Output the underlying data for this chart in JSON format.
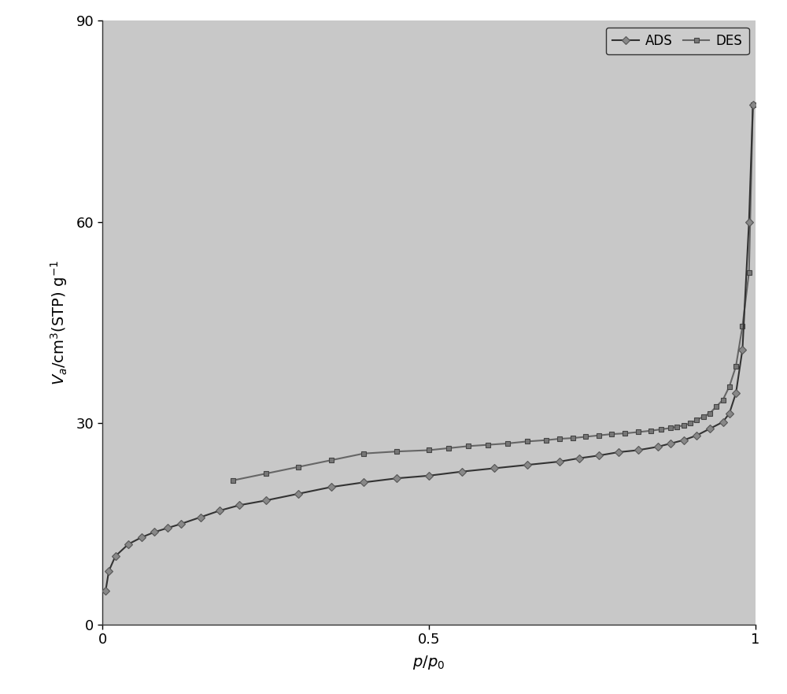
{
  "ads_x": [
    0.005,
    0.01,
    0.02,
    0.04,
    0.06,
    0.08,
    0.1,
    0.12,
    0.15,
    0.18,
    0.21,
    0.25,
    0.3,
    0.35,
    0.4,
    0.45,
    0.5,
    0.55,
    0.6,
    0.65,
    0.7,
    0.73,
    0.76,
    0.79,
    0.82,
    0.85,
    0.87,
    0.89,
    0.91,
    0.93,
    0.95,
    0.96,
    0.97,
    0.98,
    0.99,
    0.996
  ],
  "ads_y": [
    5.0,
    8.0,
    10.2,
    12.0,
    13.0,
    13.8,
    14.4,
    15.0,
    16.0,
    17.0,
    17.8,
    18.5,
    19.5,
    20.5,
    21.2,
    21.8,
    22.2,
    22.8,
    23.3,
    23.8,
    24.3,
    24.8,
    25.2,
    25.7,
    26.0,
    26.5,
    27.0,
    27.5,
    28.2,
    29.2,
    30.2,
    31.5,
    34.5,
    41.0,
    60.0,
    77.5
  ],
  "des_x": [
    0.2,
    0.25,
    0.3,
    0.35,
    0.4,
    0.45,
    0.5,
    0.53,
    0.56,
    0.59,
    0.62,
    0.65,
    0.68,
    0.7,
    0.72,
    0.74,
    0.76,
    0.78,
    0.8,
    0.82,
    0.84,
    0.855,
    0.87,
    0.88,
    0.89,
    0.9,
    0.91,
    0.92,
    0.93,
    0.94,
    0.95,
    0.96,
    0.97,
    0.98,
    0.99,
    0.996
  ],
  "des_y": [
    21.5,
    22.5,
    23.5,
    24.5,
    25.5,
    25.8,
    26.0,
    26.3,
    26.6,
    26.8,
    27.0,
    27.3,
    27.5,
    27.7,
    27.8,
    28.0,
    28.2,
    28.4,
    28.5,
    28.7,
    28.9,
    29.1,
    29.3,
    29.5,
    29.7,
    30.0,
    30.5,
    31.0,
    31.5,
    32.5,
    33.5,
    35.5,
    38.5,
    44.5,
    52.5,
    77.5
  ],
  "xlabel": "$p/p_0$",
  "ylabel": "$V_a$/cm$^3$(STP) g$^{-1}$",
  "xlim": [
    0,
    1.0
  ],
  "ylim": [
    0,
    90
  ],
  "yticks": [
    0,
    30,
    60,
    90
  ],
  "xticks": [
    0,
    0.5,
    1
  ],
  "ads_color": "#333333",
  "des_color": "#666666",
  "marker_ads": "D",
  "marker_des": "s",
  "marker_size_ads": 5,
  "marker_size_des": 5,
  "plot_bg_color": "#c8c8c8",
  "fig_bg_color": "#ffffff",
  "legend_labels": [
    "ADS",
    "DES"
  ],
  "label_fontsize": 14,
  "tick_fontsize": 13,
  "legend_fontsize": 12,
  "linewidth": 1.5
}
